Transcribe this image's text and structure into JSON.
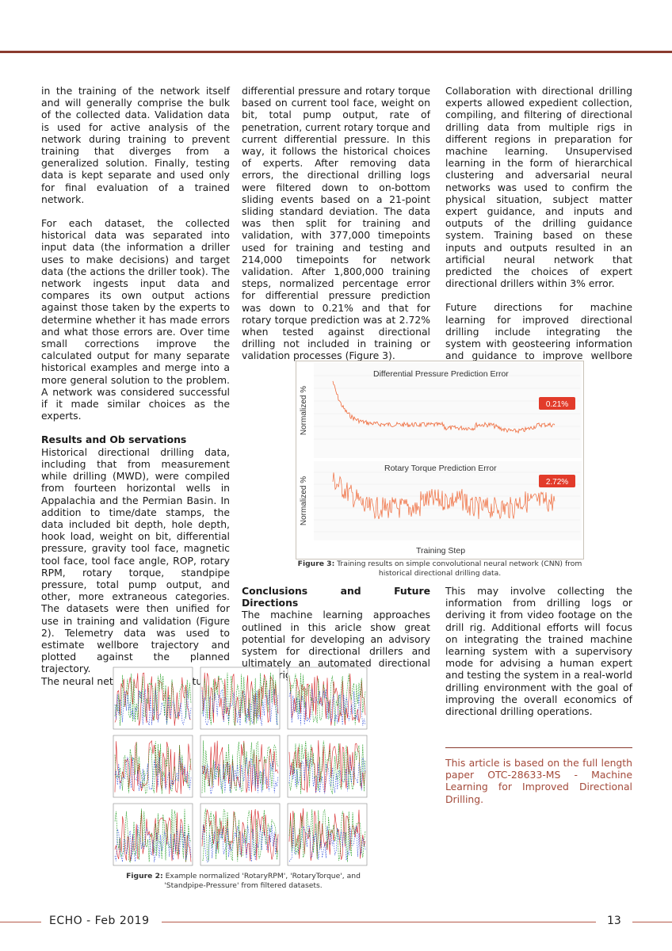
{
  "col1": {
    "p1": "in the training of the network itself and will generally comprise the bulk of the collected data. Validation data is used for active analysis of the network during training to prevent training that diverges from a generalized solution. Finally, testing data is kept separate and used only for final evaluation of a trained network.",
    "p2": "For each dataset, the collected historical data was separated into input data (the information a driller uses to make decisions) and target data (the actions the driller took). The network ingests input data and compares its own output actions against those taken by the experts to determine whether it has made errors and what those errors are. Over time small corrections improve the calculated output for many separate historical examples and merge into a more general solution to the problem. A network was considered successful if it made similar choices as the experts.",
    "heading": "Results and Ob servations",
    "p3": "Historical directional drilling data, including that from measurement while drilling (MWD), were compiled from fourteen horizontal wells in Appalachia and the Permian Basin. In addition to time/date stamps, the data included bit depth, hole depth, hook load, weight on bit, differential pressure, gravity tool face, magnetic tool face, tool face angle, ROP, rotary RPM, rotary torque, standpipe pressure, total pump output, and other, more extraneous categories. The datasets were then unified for use in training and validation (Figure 2). Telemetry data was used to estimate wellbore trajectory and plotted against the planned trajectory.",
    "p4": "The neural network predicts future"
  },
  "col2": {
    "p1": "differential pressure and rotary torque based on current tool face, weight on bit, total pump output, rate of penetration, current rotary torque and current differential pressure. In this way, it follows the historical choices of experts. After removing data errors, the directional drilling logs were filtered down to on-bottom sliding events based on a 21-point sliding standard deviation. The data was then split for training and validation, with 377,000 timepoints used for training and testing and 214,000 timepoints for network validation. After 1,800,000 training steps, normalized percentage error for differential pressure prediction was down to 0.21% and that for rotary torque prediction was at 2.72% when tested against directional drilling not included in training or validation processes (Figure 3).",
    "heading": "Conclusions and Future Directions",
    "p2": "The machine learning approaches outlined in this aricle show great potential for developing an advisory system for directional drillers and ultimately an automated directional drilling rig."
  },
  "col3": {
    "p1": "Collaboration with directional drilling experts allowed expedient collection, compiling, and filtering of directional drilling data from multiple rigs in different regions in preparation for machine learning. Unsupervised learning in the form of hierarchical clustering and adversarial neural networks was used to confirm the physical situation, subject matter expert guidance, and inputs and outputs of the drilling guidance system. Training based on these inputs and outputs resulted in an artificial neural network that predicted the choices of expert directional drillers within 3% error.",
    "p2": "Future directions for machine learning for improved directional drilling include integrating the system with geosteering information and guidance to improve wellbore trajectory targeting.",
    "p3": "This may involve collecting the information from drilling logs or deriving it from video footage on the drill rig. Additional efforts will focus on integrating the trained machine learning system with a supervisory mode for advising a human expert and testing the system in a real-world drilling environment with the goal of improving the overall economics of directional drilling operations."
  },
  "note": "This article is based on the full length paper OTC-28633-MS - Machine Learning for Improved Directional Drilling.",
  "figure3": {
    "caption_label": "Figure 3:",
    "caption_text": " Training results on simple convolutional neural network (CNN) from historical directional drilling data.",
    "top_title": "Differential Pressure Prediction Error",
    "top_value": "0.21%",
    "bottom_title": "Rotary Torque Prediction Error",
    "bottom_value": "2.72%",
    "ylabel": "Normalized %",
    "xlabel": "Training Step"
  },
  "figure2": {
    "caption_label": "Figure 2:",
    "caption_text": " Example normalized 'RotaryRPM', 'RotaryTorque', and 'Standpipe-Pressure' from filtered datasets.",
    "series_colors": [
      "#d62728",
      "#2ca02c",
      "#1f3fd6"
    ]
  },
  "footer": {
    "left": "ECHO - Feb 2019",
    "page": "13"
  }
}
